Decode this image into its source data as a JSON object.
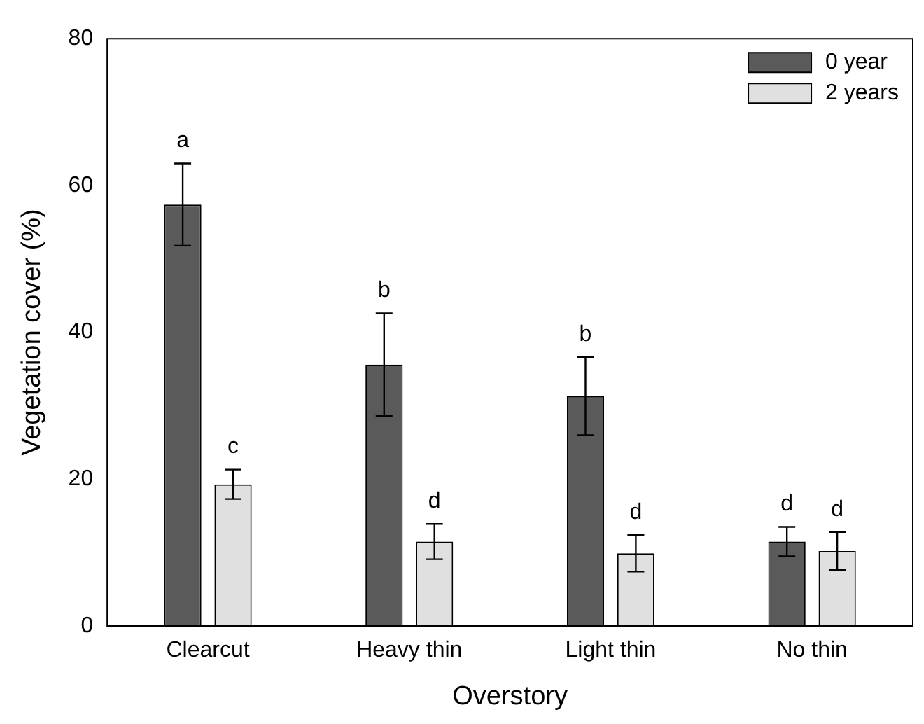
{
  "chart_data": {
    "type": "bar",
    "xlabel": "Overstory",
    "ylabel": "Vegetation cover (%)",
    "categories": [
      "Clearcut",
      "Heavy thin",
      "Light thin",
      "No thin"
    ],
    "series": [
      {
        "name": "0 year",
        "color": "#5a5a5a",
        "values": [
          57.4,
          35.6,
          31.3,
          11.5
        ],
        "errors": [
          5.6,
          7,
          5.3,
          2
        ]
      },
      {
        "name": "2 years",
        "color": "#e0e0e0",
        "values": [
          19.3,
          11.5,
          9.9,
          10.2
        ],
        "errors": [
          2,
          2.4,
          2.5,
          2.6
        ]
      }
    ],
    "ylim": [
      0,
      80
    ],
    "yticks": [
      0,
      20,
      40,
      60,
      80
    ],
    "grid": false,
    "legend": "top right",
    "annotations": [
      "a",
      "c",
      "b",
      "d",
      "b",
      "d",
      "d",
      "d"
    ]
  }
}
